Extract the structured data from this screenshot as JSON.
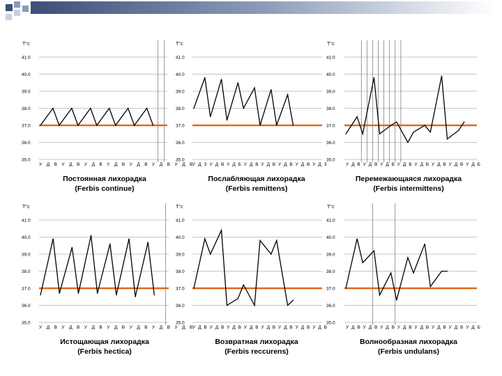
{
  "colors": {
    "line": "#000000",
    "normal_line": "#e06a1b",
    "grid": "#b0b0b0",
    "vline": "#707070",
    "deco_dark": "#3b4f7a",
    "deco_mid": "#8c9bb8",
    "deco_light": "#c9d1e2"
  },
  "chart_data": [
    {
      "type": "line",
      "title": "Постоянная лихорадка",
      "subtitle": "(Ferbis continue)",
      "ylabel": "T°c",
      "ylim": [
        35,
        41.5
      ],
      "yticks": [
        "41.0",
        "40.0",
        "39.0",
        "38.0",
        "37.0",
        "36.0",
        "35.0"
      ],
      "reference_line": 37.0,
      "x_labels": [
        "У",
        "Д",
        "В",
        "У",
        "Д",
        "В",
        "У",
        "Д",
        "В",
        "У",
        "Д",
        "В",
        "У",
        "Д",
        "В",
        "У",
        "Д",
        "В",
        "У",
        "Д",
        "В"
      ],
      "x_positions": [
        0,
        1,
        2,
        3,
        4,
        5,
        6,
        7,
        8,
        9,
        10,
        11,
        12,
        13,
        14,
        15,
        16,
        17,
        18,
        19,
        20
      ],
      "vlines": [
        19,
        20
      ],
      "series": [
        {
          "x": [
            0,
            2,
            3,
            5,
            6,
            8,
            9,
            11,
            12,
            14,
            15,
            17,
            18
          ],
          "y": [
            37.0,
            38.0,
            37.0,
            38.0,
            37.0,
            38.0,
            37.0,
            38.0,
            37.0,
            38.0,
            37.0,
            38.0,
            37.0
          ]
        }
      ]
    },
    {
      "type": "line",
      "title": "Послабляющая лихорадка",
      "subtitle": "(Ferbis remittens)",
      "ylabel": "T°c",
      "ylim": [
        35,
        41.5
      ],
      "yticks": [
        "41.0",
        "40.0",
        "39.0",
        "38.0",
        "37.0",
        "36.0",
        "35.0"
      ],
      "reference_line": 37.0,
      "x_labels": [
        "У",
        "Д",
        "З",
        "У",
        "Д",
        "В",
        "У",
        "Д",
        "Б",
        "У",
        "Д",
        "В",
        "У",
        "Д",
        "В",
        "У",
        "Д",
        "В",
        "У",
        "Д",
        "В",
        "У",
        "Д",
        "З"
      ],
      "x_positions": [
        0,
        1,
        2,
        3,
        4,
        5,
        6,
        7,
        8,
        9,
        10,
        11,
        12,
        13,
        14,
        15,
        16,
        17,
        18,
        19,
        20,
        21,
        22,
        23
      ],
      "vlines": [],
      "series": [
        {
          "x": [
            0,
            2,
            3,
            5,
            6,
            8,
            9,
            11,
            12,
            14,
            15,
            17,
            18
          ],
          "y": [
            38.0,
            39.8,
            37.5,
            39.7,
            37.3,
            39.5,
            38.0,
            39.2,
            37.0,
            39.1,
            37.0,
            38.8,
            37.0
          ]
        }
      ]
    },
    {
      "type": "line",
      "title": "Перемежающаяся лихорадка",
      "subtitle": "(Ferbis intermittens)",
      "ylabel": "T°c",
      "ylim": [
        35,
        41.5
      ],
      "yticks": [
        "41.0",
        "40.0",
        "39.0",
        "38.0",
        "37.0",
        "36.0",
        "35.0"
      ],
      "reference_line": 37.0,
      "x_labels": [
        "У",
        "Д",
        "В",
        "У",
        "Д",
        "В",
        "У",
        "Д",
        "В",
        "У",
        "Д",
        "В",
        "У",
        "Д",
        "В",
        "У",
        "Д",
        "В",
        "У",
        "Д",
        "В",
        "У",
        "Д",
        "Б"
      ],
      "x_positions": [
        0,
        1,
        2,
        3,
        4,
        5,
        6,
        7,
        8,
        9,
        10,
        11,
        12,
        13,
        14,
        15,
        16,
        17,
        18,
        19,
        20,
        21,
        22,
        23
      ],
      "vlines": [
        3,
        4,
        5,
        6,
        7,
        8,
        9,
        10
      ],
      "series": [
        {
          "x": [
            0,
            2,
            3,
            5,
            6,
            8,
            9,
            11,
            12,
            14,
            15,
            17,
            18,
            20,
            21
          ],
          "y": [
            36.5,
            37.5,
            36.5,
            39.8,
            36.5,
            37.0,
            37.2,
            36.0,
            36.6,
            37.0,
            36.6,
            39.9,
            36.2,
            36.7,
            37.2
          ]
        }
      ]
    },
    {
      "type": "line",
      "title": "Истощающая лихорадка",
      "subtitle": "(Ferbis hectica)",
      "ylabel": "T°c",
      "ylim": [
        35,
        41.5
      ],
      "yticks": [
        "41.0",
        "40.0",
        "39.0",
        "38.0",
        "37.0",
        "36.0",
        "35.0"
      ],
      "reference_line": 37.0,
      "x_labels": [
        "У",
        "Д",
        "В",
        "У",
        "Д",
        "В",
        "У",
        "Д",
        "В",
        "У",
        "Д",
        "В",
        "У",
        "Д",
        "В",
        "У",
        "Д",
        "В",
        "У",
        "Д",
        "В"
      ],
      "x_positions": [
        0,
        1,
        2,
        3,
        4,
        5,
        6,
        7,
        8,
        9,
        10,
        11,
        12,
        13,
        14,
        15,
        16,
        17,
        18,
        19,
        20
      ],
      "vlines": [
        20
      ],
      "series": [
        {
          "x": [
            0,
            2,
            3,
            5,
            6,
            8,
            9,
            11,
            12,
            14,
            15,
            17,
            18
          ],
          "y": [
            36.6,
            39.9,
            36.7,
            39.4,
            36.7,
            40.1,
            36.7,
            39.6,
            36.6,
            39.9,
            36.5,
            39.7,
            36.6
          ]
        }
      ]
    },
    {
      "type": "line",
      "title": "Возвратная лихорадка",
      "subtitle": "(Ferbis reccurens)",
      "ylabel": "T°c",
      "ylim": [
        35,
        41.5
      ],
      "yticks": [
        "41.0",
        "40.0",
        "39.0",
        "38.0",
        "37.0",
        "36.0",
        "35.0"
      ],
      "reference_line": 37.0,
      "x_labels": [
        "У",
        "Д",
        "В",
        "У",
        "Д",
        "В",
        "У",
        "Д",
        "В",
        "У",
        "Д",
        "В",
        "У",
        "Д",
        "В",
        "У",
        "Д",
        "В",
        "У",
        "Д",
        "В",
        "У",
        "Д",
        "В"
      ],
      "x_positions": [
        0,
        1,
        2,
        3,
        4,
        5,
        6,
        7,
        8,
        9,
        10,
        11,
        12,
        13,
        14,
        15,
        16,
        17,
        18,
        19,
        20,
        21,
        22,
        23
      ],
      "vlines": [],
      "series": [
        {
          "x": [
            0,
            2,
            3,
            5,
            6,
            8,
            9,
            11,
            12,
            14,
            15,
            17,
            18
          ],
          "y": [
            37.0,
            39.9,
            39.0,
            40.4,
            36.0,
            36.4,
            37.2,
            36.0,
            39.8,
            39.0,
            39.8,
            36.0,
            36.3
          ]
        }
      ]
    },
    {
      "type": "line",
      "title": "Волнообразная лихорадка",
      "subtitle": "(Ferbis undulans)",
      "ylabel": "T°c",
      "ylim": [
        35,
        41.5
      ],
      "yticks": [
        "41.0",
        "40.0",
        "39.0",
        "38.0",
        "37.0",
        "36.0",
        "35.0"
      ],
      "reference_line": 37.0,
      "x_labels": [
        "У",
        "Д",
        "В",
        "У",
        "Д",
        "В",
        "У",
        "Д",
        "В",
        "У",
        "Д",
        "В",
        "У",
        "Д",
        "В",
        "У",
        "Д",
        "В",
        "У",
        "Д",
        "В",
        "У",
        "Д",
        "Б"
      ],
      "x_positions": [
        0,
        1,
        2,
        3,
        4,
        5,
        6,
        7,
        8,
        9,
        10,
        11,
        12,
        13,
        14,
        15,
        16,
        17,
        18,
        19,
        20,
        21,
        22,
        23
      ],
      "vlines": [
        5,
        9
      ],
      "series": [
        {
          "x": [
            0,
            2,
            3,
            5,
            6,
            8,
            9,
            11,
            12,
            14,
            15,
            17,
            18
          ],
          "y": [
            37.0,
            39.9,
            38.5,
            39.2,
            36.6,
            37.9,
            36.3,
            38.8,
            37.9,
            39.6,
            37.1,
            38.0,
            38.0
          ]
        }
      ]
    }
  ]
}
